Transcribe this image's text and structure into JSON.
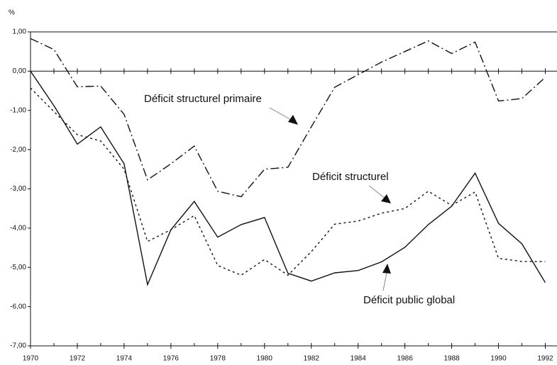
{
  "chart_data": {
    "type": "line",
    "y_label": "%",
    "x": [
      1970,
      1971,
      1972,
      1973,
      1974,
      1975,
      1976,
      1977,
      1978,
      1979,
      1980,
      1981,
      1982,
      1983,
      1984,
      1985,
      1986,
      1987,
      1988,
      1989,
      1990,
      1991,
      1992
    ],
    "series": [
      {
        "name": "Déficit structurel primaire",
        "color": "#111111",
        "dash": "12 4 2 4",
        "values": [
          0.83,
          0.55,
          -0.4,
          -0.38,
          -1.1,
          -2.77,
          -2.36,
          -1.91,
          -3.06,
          -3.2,
          -2.5,
          -2.45,
          -1.42,
          -0.41,
          -0.09,
          0.23,
          0.5,
          0.77,
          0.45,
          0.74,
          -0.76,
          -0.7,
          -0.16
        ]
      },
      {
        "name": "Déficit structurel",
        "color": "#111111",
        "dash": "3 4",
        "values": [
          -0.43,
          -1.03,
          -1.62,
          -1.78,
          -2.5,
          -4.34,
          -4.04,
          -3.68,
          -4.95,
          -5.2,
          -4.8,
          -5.2,
          -4.6,
          -3.9,
          -3.82,
          -3.62,
          -3.5,
          -3.06,
          -3.42,
          -3.08,
          -4.77,
          -4.85,
          -4.85
        ]
      },
      {
        "name": "Déficit public global",
        "color": "#111111",
        "dash": "",
        "values": [
          0,
          -0.88,
          -1.86,
          -1.42,
          -2.36,
          -5.44,
          -4.04,
          -3.32,
          -4.23,
          -3.91,
          -3.73,
          -5.15,
          -5.35,
          -5.14,
          -5.08,
          -4.86,
          -4.49,
          -3.91,
          -3.44,
          -2.6,
          -3.88,
          -4.4,
          -5.39
        ]
      }
    ],
    "xlim": [
      1970,
      1992.5
    ],
    "xticks": [
      1970,
      1972,
      1974,
      1976,
      1978,
      1980,
      1982,
      1984,
      1986,
      1988,
      1990,
      1992
    ],
    "ylim": [
      -7,
      1
    ],
    "yticks": [
      {
        "value": 1,
        "label": "1,00"
      },
      {
        "value": 0,
        "label": "0,00"
      },
      {
        "value": -1,
        "label": "-1,00"
      },
      {
        "value": -2,
        "label": "-2,00"
      },
      {
        "value": -3,
        "label": "-3,00"
      },
      {
        "value": -4,
        "label": "-4,00"
      },
      {
        "value": -5,
        "label": "-5,00"
      },
      {
        "value": -6,
        "label": "-6,00"
      },
      {
        "value": -7,
        "label": "-7,00"
      }
    ]
  }
}
